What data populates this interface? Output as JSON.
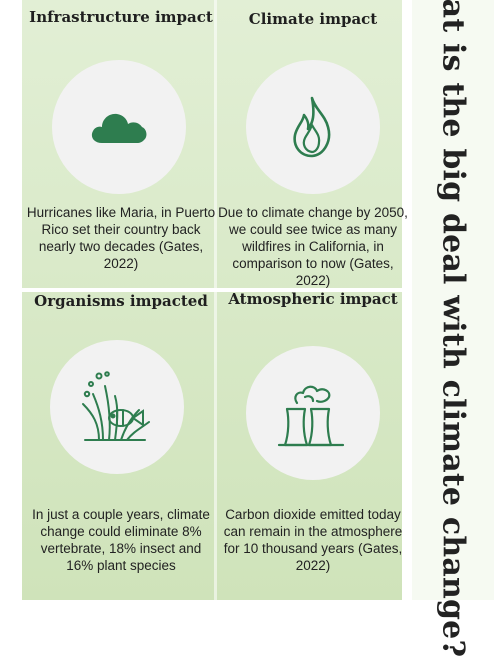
{
  "side_title": "What is the big deal with climate change?",
  "colors": {
    "panel": "#d8e9c8",
    "icon_green": "#2e7d4f",
    "circle": "#f2f2f2"
  },
  "quadrants": [
    {
      "heading": "Infrastructure impact",
      "icon": "cloud-icon",
      "text": "Hurricanes like Maria, in Puerto Rico set their country back nearly two decades (Gates, 2022)"
    },
    {
      "heading": "Climate impact",
      "icon": "flame-icon",
      "text": "Due to climate change by 2050, we could see twice as many wildfires in California, in comparison to now (Gates, 2022)"
    },
    {
      "heading": "Organisms impacted",
      "icon": "coral-fish-icon",
      "text": "In just a couple years, climate change could eliminate 8% vertebrate, 18% insect and 16% plant species"
    },
    {
      "heading": "Atmospheric impact",
      "icon": "cooling-tower-icon",
      "text": "Carbon dioxide emitted today can remain in the atmosphere for 10 thousand years (Gates, 2022)"
    }
  ]
}
